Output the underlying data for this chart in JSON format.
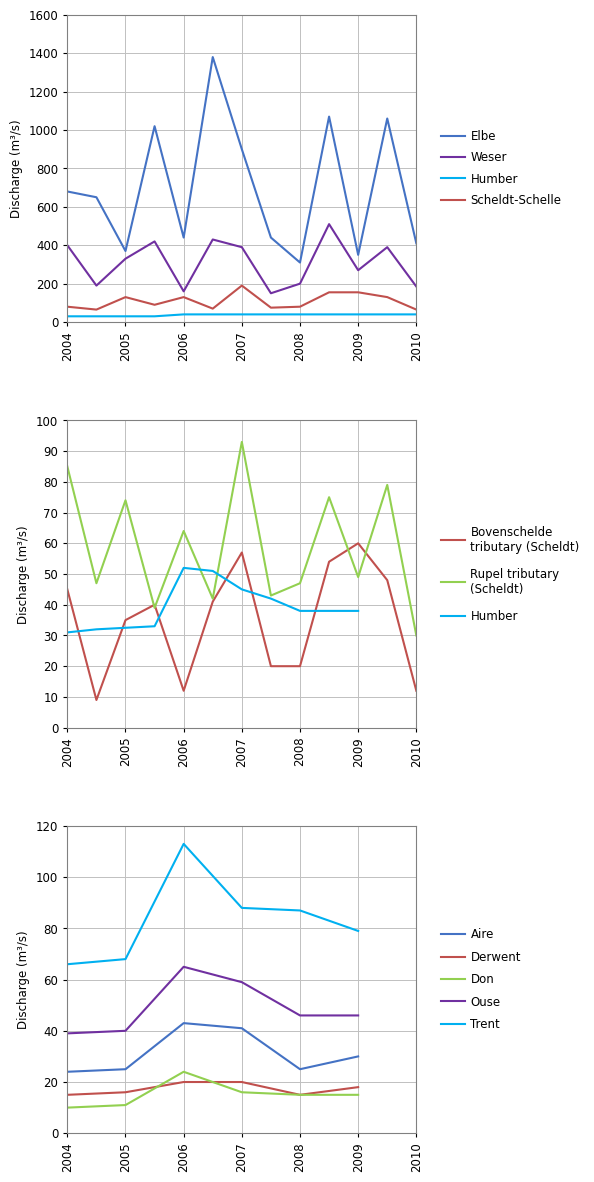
{
  "chart1": {
    "ylabel": "Discharge (m³/s)",
    "ylim": [
      0,
      1600
    ],
    "yticks": [
      0,
      200,
      400,
      600,
      800,
      1000,
      1200,
      1400,
      1600
    ],
    "xlim": [
      2004,
      2010
    ],
    "xticks": [
      2004,
      2005,
      2006,
      2007,
      2008,
      2009,
      2010
    ],
    "series": {
      "Elbe": {
        "color": "#4472C4",
        "x": [
          2004.0,
          2004.5,
          2005.0,
          2005.5,
          2006.0,
          2006.5,
          2007.0,
          2007.5,
          2008.0,
          2008.5,
          2009.0,
          2009.5,
          2010.0
        ],
        "y": [
          680,
          650,
          370,
          1020,
          440,
          1380,
          900,
          440,
          310,
          1070,
          350,
          1060,
          410
        ]
      },
      "Weser": {
        "color": "#7030A0",
        "x": [
          2004.0,
          2004.5,
          2005.0,
          2005.5,
          2006.0,
          2006.5,
          2007.0,
          2007.5,
          2008.0,
          2008.5,
          2009.0,
          2009.5,
          2010.0
        ],
        "y": [
          400,
          190,
          330,
          420,
          160,
          430,
          390,
          150,
          200,
          510,
          270,
          390,
          185
        ]
      },
      "Humber": {
        "color": "#00B0F0",
        "x": [
          2004.0,
          2004.5,
          2005.0,
          2005.5,
          2006.0,
          2006.5,
          2007.0,
          2007.5,
          2008.0,
          2008.5,
          2009.0,
          2009.5,
          2010.0
        ],
        "y": [
          30,
          30,
          30,
          30,
          40,
          40,
          40,
          40,
          40,
          40,
          40,
          40,
          40
        ]
      },
      "Scheldt-Schelle": {
        "color": "#C0504D",
        "x": [
          2004.0,
          2004.5,
          2005.0,
          2005.5,
          2006.0,
          2006.5,
          2007.0,
          2007.5,
          2008.0,
          2008.5,
          2009.0,
          2009.5,
          2010.0
        ],
        "y": [
          80,
          65,
          130,
          90,
          130,
          70,
          190,
          75,
          80,
          155,
          155,
          130,
          65
        ]
      }
    }
  },
  "chart2": {
    "ylabel": "Discharge (m³/s)",
    "ylim": [
      0,
      100
    ],
    "yticks": [
      0,
      10,
      20,
      30,
      40,
      50,
      60,
      70,
      80,
      90,
      100
    ],
    "xlim": [
      2004,
      2010
    ],
    "xticks": [
      2004,
      2005,
      2006,
      2007,
      2008,
      2009,
      2010
    ],
    "series": {
      "Bovenschelde\ntributary (Scheldt)": {
        "color": "#C0504D",
        "x": [
          2004.0,
          2004.5,
          2005.0,
          2005.5,
          2006.0,
          2006.5,
          2007.0,
          2007.5,
          2008.0,
          2008.5,
          2009.0,
          2009.5,
          2010.0
        ],
        "y": [
          45,
          9,
          35,
          40,
          12,
          41,
          57,
          20,
          20,
          54,
          60,
          48,
          12
        ]
      },
      "Rupel tributary\n(Scheldt)": {
        "color": "#92D050",
        "x": [
          2004.0,
          2004.5,
          2005.0,
          2005.5,
          2006.0,
          2006.5,
          2007.0,
          2007.5,
          2008.0,
          2008.5,
          2009.0,
          2009.5,
          2010.0
        ],
        "y": [
          85,
          47,
          74,
          39,
          64,
          42,
          93,
          43,
          47,
          75,
          49,
          79,
          30
        ]
      },
      "Humber": {
        "color": "#00B0F0",
        "x": [
          2004.0,
          2004.5,
          2005.5,
          2006.0,
          2006.5,
          2007.0,
          2007.5,
          2008.0,
          2008.5,
          2009.0
        ],
        "y": [
          31,
          32,
          33,
          52,
          51,
          45,
          42,
          38,
          38,
          38
        ]
      }
    }
  },
  "chart3": {
    "ylabel": "Discharge (m³/s)",
    "ylim": [
      0,
      120
    ],
    "yticks": [
      0,
      20,
      40,
      60,
      80,
      100,
      120
    ],
    "xlim": [
      2004,
      2010
    ],
    "xticks": [
      2004,
      2005,
      2006,
      2007,
      2008,
      2009,
      2010
    ],
    "series": {
      "Aire": {
        "color": "#4472C4",
        "x": [
          2004,
          2005,
          2006,
          2007,
          2008,
          2009
        ],
        "y": [
          24,
          25,
          43,
          41,
          25,
          30
        ]
      },
      "Derwent": {
        "color": "#C0504D",
        "x": [
          2004,
          2005,
          2006,
          2007,
          2008,
          2009
        ],
        "y": [
          15,
          16,
          20,
          20,
          15,
          18
        ]
      },
      "Don": {
        "color": "#92D050",
        "x": [
          2004,
          2005,
          2006,
          2007,
          2008,
          2009
        ],
        "y": [
          10,
          11,
          24,
          16,
          15,
          15
        ]
      },
      "Ouse": {
        "color": "#7030A0",
        "x": [
          2004,
          2005,
          2006,
          2007,
          2008,
          2009
        ],
        "y": [
          39,
          40,
          65,
          59,
          46,
          46
        ]
      },
      "Trent": {
        "color": "#00B0F0",
        "x": [
          2004,
          2005,
          2006,
          2007,
          2008,
          2009
        ],
        "y": [
          66,
          68,
          113,
          88,
          87,
          79
        ]
      }
    }
  },
  "background_color": "#FFFFFF",
  "plot_bg_color": "#FFFFFF",
  "grid_color": "#C0C0C0",
  "border_color": "#808080"
}
